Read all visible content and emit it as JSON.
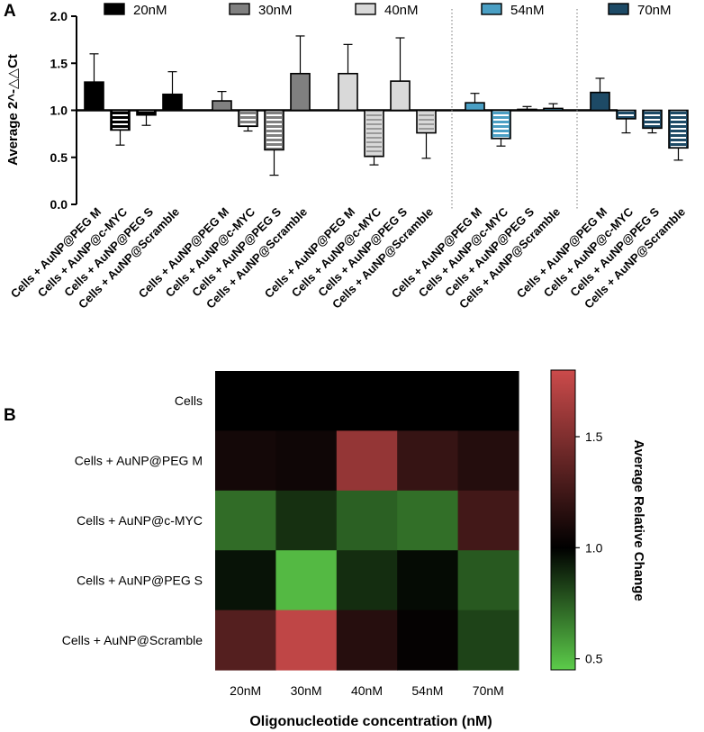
{
  "panel_labels": [
    "A",
    "B"
  ],
  "chart_data": [
    {
      "type": "bar",
      "title": "",
      "xlabel": "",
      "ylabel": "Average 2^-△△Ct",
      "ylim": [
        0,
        2.0
      ],
      "yticks": [
        "0.0",
        "0.5",
        "1.0",
        "1.5",
        "2.0"
      ],
      "baseline": 1.0,
      "legend_position": "top",
      "categories": [
        "Cells + AuNP@PEG M",
        "Cells + AuNP@c-MYC",
        "Cells + AuNP@PEG S",
        "Cells + AuNP@Scramble"
      ],
      "series": [
        {
          "name": "20nM",
          "color": "#000000",
          "pattern": "stripes-white",
          "values": [
            1.3,
            0.79,
            0.95,
            1.17
          ],
          "errors": [
            0.3,
            0.16,
            0.11,
            0.24
          ]
        },
        {
          "name": "30nM",
          "color": "#808080",
          "pattern": "stripes-white",
          "values": [
            1.1,
            0.83,
            0.58,
            1.39
          ],
          "errors": [
            0.1,
            0.05,
            0.27,
            0.4
          ]
        },
        {
          "name": "40nM",
          "color": "#d9d9d9",
          "pattern": "stripes-gray",
          "values": [
            1.39,
            0.51,
            1.31,
            0.76
          ],
          "errors": [
            0.31,
            0.09,
            0.46,
            0.27
          ]
        },
        {
          "name": "54nM",
          "color": "#4a9fc4",
          "pattern": "stripes-white",
          "values": [
            1.08,
            0.7,
            1.01,
            1.02
          ],
          "errors": [
            0.1,
            0.08,
            0.03,
            0.05
          ]
        },
        {
          "name": "70nM",
          "color": "#1d4a66",
          "pattern": "stripes-white",
          "values": [
            1.19,
            0.91,
            0.81,
            0.6
          ],
          "errors": [
            0.15,
            0.15,
            0.05,
            0.13
          ]
        }
      ]
    },
    {
      "type": "heatmap",
      "xlabel": "Oligonucleotide concentration (nM)",
      "x_categories": [
        "20nM",
        "30nM",
        "40nM",
        "54nM",
        "70nM"
      ],
      "y_categories": [
        "Cells",
        "Cells + AuNP@PEG M",
        "Cells + AuNP@c-MYC",
        "Cells + AuNP@PEG S",
        "Cells + AuNP@Scramble"
      ],
      "values": [
        [
          1.0,
          1.0,
          1.0,
          1.0,
          1.0
        ],
        [
          1.08,
          1.06,
          1.58,
          1.21,
          1.14
        ],
        [
          0.71,
          0.87,
          0.74,
          0.7,
          1.26
        ],
        [
          0.95,
          0.5,
          0.88,
          0.97,
          0.76
        ],
        [
          1.33,
          1.75,
          1.15,
          1.02,
          0.82
        ]
      ],
      "colorbar": {
        "label": "Average Relative Change",
        "range": [
          0.45,
          1.8
        ],
        "ticks": [
          "0.5",
          "1.0",
          "1.5"
        ],
        "colors": {
          "low": "#5ccc4a",
          "mid": "#000000",
          "high": "#cc4b4b"
        }
      }
    }
  ]
}
